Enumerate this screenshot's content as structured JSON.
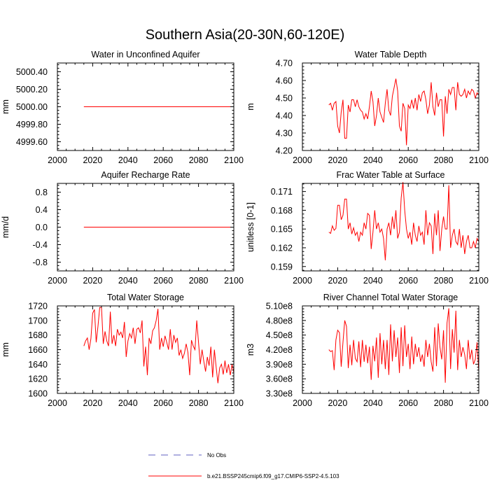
{
  "figure": {
    "title": "Southern Asia(20-30N,60-120E)"
  },
  "legend": {
    "items": [
      {
        "label": "No Obs",
        "color": "#6060c0",
        "style": "dashed"
      },
      {
        "label": "b.e21.BSSP245cmip6.f09_g17.CMIP6-SSP2-4.5.103",
        "color": "#ff0000",
        "style": "solid"
      }
    ]
  },
  "chart_data": [
    {
      "type": "line",
      "title": "Water in Unconfined Aquifer",
      "ylabel": "mm",
      "xlim": [
        2000,
        2100
      ],
      "ylim": [
        4999.5,
        5000.5
      ],
      "xticks": [
        2000,
        2020,
        2040,
        2060,
        2080,
        2100
      ],
      "yticks": [
        4999.6,
        4999.8,
        5000.0,
        5000.2,
        5000.4
      ],
      "ytick_labels": [
        "4999.60",
        "4999.80",
        "5000.00",
        "5000.20",
        "5000.40"
      ],
      "series": [
        {
          "name": "b.e21.BSSP245cmip6.f09_g17.CMIP6-SSP2-4.5.103",
          "color": "#ff0000",
          "x_start": 2015,
          "x_step": 1,
          "values": [
            5000.0,
            5000.0,
            5000.0,
            5000.0,
            5000.0,
            5000.0,
            5000.0,
            5000.0,
            5000.0,
            5000.0,
            5000.0,
            5000.0,
            5000.0,
            5000.0,
            5000.0,
            5000.0,
            5000.0,
            5000.0,
            5000.0,
            5000.0,
            5000.0,
            5000.0,
            5000.0,
            5000.0,
            5000.0,
            5000.0,
            5000.0,
            5000.0,
            5000.0,
            5000.0,
            5000.0,
            5000.0,
            5000.0,
            5000.0,
            5000.0,
            5000.0,
            5000.0,
            5000.0,
            5000.0,
            5000.0,
            5000.0,
            5000.0,
            5000.0,
            5000.0,
            5000.0,
            5000.0,
            5000.0,
            5000.0,
            5000.0,
            5000.0,
            5000.0,
            5000.0,
            5000.0,
            5000.0,
            5000.0,
            5000.0,
            5000.0,
            5000.0,
            5000.0,
            5000.0,
            5000.0,
            5000.0,
            5000.0,
            5000.0,
            5000.0,
            5000.0,
            5000.0,
            5000.0,
            5000.0,
            5000.0,
            5000.0,
            5000.0,
            5000.0,
            5000.0,
            5000.0,
            5000.0,
            5000.0,
            5000.0,
            5000.0,
            5000.0,
            5000.0,
            5000.0,
            5000.0,
            5000.0,
            5000.0,
            5000.0
          ]
        }
      ]
    },
    {
      "type": "line",
      "title": "Water Table Depth",
      "ylabel": "m",
      "xlim": [
        2000,
        2100
      ],
      "ylim": [
        4.2,
        4.7
      ],
      "xticks": [
        2000,
        2020,
        2040,
        2060,
        2080,
        2100
      ],
      "yticks": [
        4.2,
        4.3,
        4.4,
        4.5,
        4.6,
        4.7
      ],
      "ytick_labels": [
        "4.20",
        "4.30",
        "4.40",
        "4.50",
        "4.60",
        "4.70"
      ],
      "series": [
        {
          "name": "b.e21.BSSP245cmip6.f09_g17.CMIP6-SSP2-4.5.103",
          "color": "#ff0000",
          "x_start": 2015,
          "x_step": 1,
          "values": [
            4.46,
            4.47,
            4.43,
            4.47,
            4.48,
            4.34,
            4.3,
            4.42,
            4.49,
            4.27,
            4.27,
            4.46,
            4.42,
            4.49,
            4.49,
            4.45,
            4.49,
            4.45,
            4.43,
            4.42,
            4.38,
            4.41,
            4.38,
            4.45,
            4.54,
            4.48,
            4.34,
            4.4,
            4.5,
            4.42,
            4.39,
            4.36,
            4.47,
            4.55,
            4.43,
            4.4,
            4.51,
            4.56,
            4.61,
            4.54,
            4.34,
            4.31,
            4.47,
            4.44,
            4.23,
            4.46,
            4.44,
            4.49,
            4.44,
            4.5,
            4.43,
            4.52,
            4.48,
            4.53,
            4.54,
            4.49,
            4.41,
            4.46,
            4.59,
            4.45,
            4.4,
            4.53,
            4.45,
            4.49,
            4.49,
            4.28,
            4.51,
            4.41,
            4.55,
            4.52,
            4.56,
            4.56,
            4.43,
            4.59,
            4.52,
            4.51,
            4.52,
            4.55,
            4.5,
            4.54,
            4.52,
            4.55,
            4.54,
            4.5,
            4.53,
            4.52
          ]
        }
      ]
    },
    {
      "type": "line",
      "title": "Aquifer Recharge Rate",
      "ylabel": "mm/d",
      "xlim": [
        2000,
        2100
      ],
      "ylim": [
        -1.0,
        1.0
      ],
      "xticks": [
        2000,
        2020,
        2040,
        2060,
        2080,
        2100
      ],
      "yticks": [
        -0.8,
        -0.4,
        0.0,
        0.4,
        0.8
      ],
      "ytick_labels": [
        "-0.8",
        "-0.4",
        "0.0",
        "0.4",
        "0.8"
      ],
      "series": [
        {
          "name": "b.e21.BSSP245cmip6.f09_g17.CMIP6-SSP2-4.5.103",
          "color": "#ff0000",
          "x_start": 2015,
          "x_step": 1,
          "values": [
            0.0,
            0.0,
            0.0,
            0.0,
            0.0,
            0.0,
            0.0,
            0.0,
            0.0,
            0.0,
            0.0,
            0.0,
            0.0,
            0.0,
            0.0,
            0.0,
            0.0,
            0.0,
            0.0,
            0.0,
            0.0,
            0.0,
            0.0,
            0.0,
            0.0,
            0.0,
            0.0,
            0.0,
            0.0,
            0.0,
            0.0,
            0.0,
            0.0,
            0.0,
            0.0,
            0.0,
            0.0,
            0.0,
            0.0,
            0.0,
            0.0,
            0.0,
            0.0,
            0.0,
            0.0,
            0.0,
            0.0,
            0.0,
            0.0,
            0.0,
            0.0,
            0.0,
            0.0,
            0.0,
            0.0,
            0.0,
            0.0,
            0.0,
            0.0,
            0.0,
            0.0,
            0.0,
            0.0,
            0.0,
            0.0,
            0.0,
            0.0,
            0.0,
            0.0,
            0.0,
            0.0,
            0.0,
            0.0,
            0.0,
            0.0,
            0.0,
            0.0,
            0.0,
            0.0,
            0.0,
            0.0,
            0.0,
            0.0,
            0.0,
            0.0,
            0.0
          ]
        }
      ]
    },
    {
      "type": "line",
      "title": "Frac Water Table at Surface",
      "ylabel": "unitless [0-1]",
      "xlim": [
        2000,
        2100
      ],
      "ylim": [
        0.1583,
        0.1723
      ],
      "xticks": [
        2000,
        2020,
        2040,
        2060,
        2080,
        2100
      ],
      "yticks": [
        0.159,
        0.162,
        0.165,
        0.168,
        0.171
      ],
      "ytick_labels": [
        "0.159",
        "0.162",
        "0.165",
        "0.168",
        "0.171"
      ],
      "series": [
        {
          "name": "b.e21.BSSP245cmip6.f09_g17.CMIP6-SSP2-4.5.103",
          "color": "#ff0000",
          "x_start": 2015,
          "x_step": 1,
          "values": [
            0.1645,
            0.1643,
            0.1655,
            0.1648,
            0.1651,
            0.1688,
            0.1688,
            0.1665,
            0.1672,
            0.1698,
            0.1698,
            0.165,
            0.166,
            0.1642,
            0.1652,
            0.164,
            0.1645,
            0.163,
            0.1645,
            0.164,
            0.166,
            0.165,
            0.1675,
            0.1672,
            0.1618,
            0.1645,
            0.168,
            0.165,
            0.166,
            0.1645,
            0.165,
            0.1635,
            0.16,
            0.165,
            0.166,
            0.164,
            0.167,
            0.165,
            0.168,
            0.1635,
            0.1645,
            0.17,
            0.1725,
            0.168,
            0.165,
            0.1635,
            0.1645,
            0.1625,
            0.166,
            0.164,
            0.163,
            0.1655,
            0.164,
            0.1645,
            0.1625,
            0.168,
            0.164,
            0.166,
            0.1655,
            0.161,
            0.1675,
            0.164,
            0.168,
            0.1615,
            0.165,
            0.167,
            0.165,
            0.165,
            0.172,
            0.162,
            0.164,
            0.165,
            0.163,
            0.1625,
            0.165,
            0.162,
            0.164,
            0.161,
            0.163,
            0.164,
            0.162,
            0.162,
            0.163,
            0.162,
            0.1635,
            0.163
          ]
        }
      ]
    },
    {
      "type": "line",
      "title": "Total Water Storage",
      "ylabel": "mm",
      "xlim": [
        2000,
        2100
      ],
      "ylim": [
        1600,
        1720
      ],
      "xticks": [
        2000,
        2020,
        2040,
        2060,
        2080,
        2100
      ],
      "yticks": [
        1600,
        1620,
        1640,
        1660,
        1680,
        1700,
        1720
      ],
      "ytick_labels": [
        "1600",
        "1620",
        "1640",
        "1660",
        "1680",
        "1700",
        "1720"
      ],
      "series": [
        {
          "name": "b.e21.BSSP245cmip6.f09_g17.CMIP6-SSP2-4.5.103",
          "color": "#ff0000",
          "x_start": 2015,
          "x_step": 1,
          "values": [
            1665,
            1672,
            1676,
            1660,
            1675,
            1710,
            1715,
            1670,
            1692,
            1718,
            1718,
            1668,
            1685,
            1672,
            1665,
            1712,
            1668,
            1680,
            1665,
            1688,
            1680,
            1684,
            1676,
            1698,
            1650,
            1672,
            1682,
            1676,
            1690,
            1668,
            1688,
            1690,
            1683,
            1700,
            1637,
            1664,
            1625,
            1676,
            1668,
            1686,
            1690,
            1700,
            1716,
            1660,
            1676,
            1664,
            1679,
            1670,
            1660,
            1688,
            1660,
            1680,
            1670,
            1676,
            1652,
            1660,
            1648,
            1655,
            1668,
            1656,
            1625,
            1673,
            1665,
            1660,
            1700,
            1670,
            1640,
            1660,
            1644,
            1630,
            1650,
            1638,
            1664,
            1622,
            1660,
            1636,
            1614,
            1635,
            1640,
            1626,
            1645,
            1628,
            1640,
            1625,
            1640,
            1628
          ]
        }
      ]
    },
    {
      "type": "line",
      "title": "River Channel Total Water Storage",
      "ylabel": "m3",
      "xlim": [
        2000,
        2100
      ],
      "ylim": [
        330000000,
        510000000
      ],
      "xticks": [
        2000,
        2020,
        2040,
        2060,
        2080,
        2100
      ],
      "yticks": [
        330000000,
        360000000,
        390000000,
        420000000,
        450000000,
        480000000,
        510000000
      ],
      "ytick_labels": [
        "3.30e8",
        "3.60e8",
        "3.90e8",
        "4.20e8",
        "4.50e8",
        "4.80e8",
        "5.10e8"
      ],
      "series": [
        {
          "name": "b.e21.BSSP245cmip6.f09_g17.CMIP6-SSP2-4.5.103",
          "color": "#ff0000",
          "x_start": 2015,
          "x_step": 1,
          "values": [
            420000000,
            416000000,
            418000000,
            378000000,
            440000000,
            460000000,
            455000000,
            385000000,
            435000000,
            480000000,
            468000000,
            382000000,
            430000000,
            388000000,
            440000000,
            402000000,
            395000000,
            437000000,
            384000000,
            440000000,
            395000000,
            430000000,
            392000000,
            426000000,
            358000000,
            428000000,
            396000000,
            445000000,
            362000000,
            454000000,
            390000000,
            440000000,
            380000000,
            440000000,
            368000000,
            472000000,
            396000000,
            460000000,
            405000000,
            445000000,
            372000000,
            466000000,
            386000000,
            470000000,
            405000000,
            432000000,
            380000000,
            447000000,
            390000000,
            432000000,
            405000000,
            425000000,
            395000000,
            410000000,
            385000000,
            440000000,
            405000000,
            432000000,
            395000000,
            375000000,
            466000000,
            386000000,
            474000000,
            425000000,
            400000000,
            460000000,
            352000000,
            475000000,
            505000000,
            380000000,
            462000000,
            414000000,
            500000000,
            378000000,
            440000000,
            405000000,
            425000000,
            410000000,
            380000000,
            440000000,
            400000000,
            420000000,
            390000000,
            400000000,
            435000000,
            375000000
          ]
        }
      ]
    }
  ]
}
